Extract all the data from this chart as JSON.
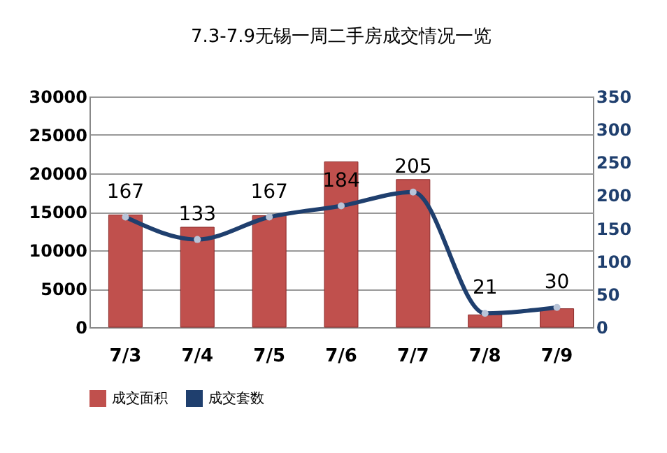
{
  "chart_data": {
    "type": "bar",
    "title": "7.3-7.9无锡一周二手房成交情况一览",
    "categories": [
      "7/3",
      "7/4",
      "7/5",
      "7/6",
      "7/7",
      "7/8",
      "7/9"
    ],
    "series": [
      {
        "name": "成交面积",
        "color": "#c0504d",
        "values": [
          14600,
          13000,
          14500,
          21500,
          19200,
          1600,
          2400
        ]
      },
      {
        "name": "成交套数",
        "type": "line",
        "axis": "y2",
        "color": "#1f3f6e",
        "marker": "circle",
        "data_labels": true,
        "values": [
          167,
          133,
          167,
          184,
          205,
          21,
          30
        ]
      }
    ],
    "ylim": [
      0,
      30000
    ],
    "yticks": [
      0,
      5000,
      10000,
      15000,
      20000,
      25000,
      30000
    ],
    "y2lim": [
      0,
      350
    ],
    "y2ticks": [
      0,
      50,
      100,
      150,
      200,
      250,
      300,
      350
    ],
    "grid": "y",
    "legend": "bottom"
  }
}
